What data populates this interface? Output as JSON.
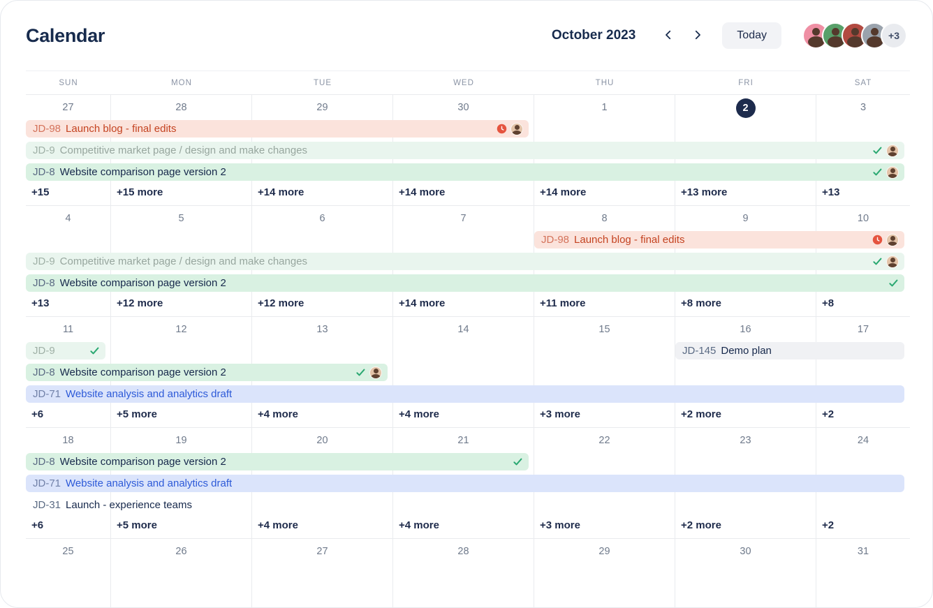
{
  "header": {
    "title": "Calendar",
    "month_label": "October 2023",
    "today_label": "Today",
    "overflow_badge": "+3",
    "avatars": [
      {
        "color": "#ef8fa4"
      },
      {
        "color": "#58a06a"
      },
      {
        "color": "#b24a41"
      },
      {
        "color": "#9aa3ad"
      }
    ]
  },
  "colors": {
    "accent_dark": "#172b4d",
    "today_bg": "#1d2b4c",
    "grid_line": "#e9ebee",
    "check": "#2aa871",
    "clock": "#e5543f",
    "event_types": {
      "red": {
        "bg": "#fbe3dc",
        "key": "#d4735b",
        "title": "#c44321"
      },
      "green_done": {
        "bg": "#e9f5ee",
        "key": "#9fb0a6",
        "title": "#97a69e"
      },
      "green": {
        "bg": "#d9f1e2",
        "key": "#5a6a83",
        "title": "#16284b"
      },
      "blue": {
        "bg": "#dbe4fb",
        "key": "#7181a8",
        "title": "#2d5ad8"
      },
      "gray": {
        "bg": "#f0f1f4",
        "key": "#5a6a83",
        "title": "#16284b"
      },
      "plain": {
        "bg": "transparent",
        "key": "#5a6a83",
        "title": "#16284b"
      }
    }
  },
  "calendar": {
    "day_headers": [
      "SUN",
      "MON",
      "TUE",
      "WED",
      "THU",
      "FRI",
      "SAT"
    ],
    "weeks": [
      {
        "dates": [
          "27",
          "28",
          "29",
          "30",
          "1",
          "2",
          "3"
        ],
        "today_index": 5,
        "events": [
          {
            "key": "JD-98",
            "title": "Launch blog - final edits",
            "type": "red",
            "col_start": 0,
            "col_span": 4,
            "row": 0,
            "icons": [
              "clock",
              "avatar"
            ]
          },
          {
            "key": "JD-9",
            "title": "Competitive market page / design and make changes",
            "type": "green_done",
            "col_start": 0,
            "col_span": 7,
            "row": 1,
            "icons": [
              "check",
              "avatar"
            ]
          },
          {
            "key": "JD-8",
            "title": "Website comparison page version 2",
            "type": "green",
            "col_start": 0,
            "col_span": 7,
            "row": 2,
            "icons": [
              "check",
              "avatar"
            ]
          }
        ],
        "more": [
          "+15",
          "+15 more",
          "+14 more",
          "+14 more",
          "+14 more",
          "+13 more",
          "+13"
        ]
      },
      {
        "dates": [
          "4",
          "5",
          "6",
          "7",
          "8",
          "9",
          "10"
        ],
        "today_index": -1,
        "events": [
          {
            "key": "JD-98",
            "title": "Launch blog - final edits",
            "type": "red",
            "col_start": 4,
            "col_span": 3,
            "row": 0,
            "icons": [
              "clock",
              "avatar"
            ]
          },
          {
            "key": "JD-9",
            "title": "Competitive market page / design and make changes",
            "type": "green_done",
            "col_start": 0,
            "col_span": 7,
            "row": 1,
            "icons": [
              "check",
              "avatar"
            ]
          },
          {
            "key": "JD-8",
            "title": "Website comparison page version 2",
            "type": "green",
            "col_start": 0,
            "col_span": 7,
            "row": 2,
            "icons": [
              "check"
            ]
          }
        ],
        "more": [
          "+13",
          "+12 more",
          "+12 more",
          "+14 more",
          "+11 more",
          "+8 more",
          "+8"
        ]
      },
      {
        "dates": [
          "11",
          "12",
          "13",
          "14",
          "15",
          "16",
          "17"
        ],
        "today_index": -1,
        "events": [
          {
            "key": "JD-9",
            "title": "",
            "type": "green_done",
            "col_start": 0,
            "col_span": 1,
            "row": 0,
            "icons": [
              "check"
            ]
          },
          {
            "key": "JD-145",
            "title": "Demo plan",
            "type": "gray",
            "col_start": 5,
            "col_span": 2,
            "row": 0,
            "icons": []
          },
          {
            "key": "JD-8",
            "title": "Website comparison page version 2",
            "type": "green",
            "col_start": 0,
            "col_span": 3,
            "row": 1,
            "icons": [
              "check",
              "avatar"
            ]
          },
          {
            "key": "JD-71",
            "title": "Website analysis and analytics draft",
            "type": "blue",
            "col_start": 0,
            "col_span": 7,
            "row": 2,
            "icons": []
          }
        ],
        "more": [
          "+6",
          "+5 more",
          "+4 more",
          "+4 more",
          "+3 more",
          "+2 more",
          "+2"
        ]
      },
      {
        "dates": [
          "18",
          "19",
          "20",
          "21",
          "22",
          "23",
          "24"
        ],
        "today_index": -1,
        "events": [
          {
            "key": "JD-8",
            "title": "Website comparison page version 2",
            "type": "green",
            "col_start": 0,
            "col_span": 4,
            "row": 0,
            "icons": [
              "check"
            ]
          },
          {
            "key": "JD-71",
            "title": "Website analysis and analytics draft",
            "type": "blue",
            "col_start": 0,
            "col_span": 7,
            "row": 1,
            "icons": []
          },
          {
            "key": "JD-31",
            "title": "Launch - experience teams",
            "type": "plain",
            "col_start": 0,
            "col_span": 7,
            "row": 2,
            "icons": []
          }
        ],
        "more": [
          "+6",
          "+5 more",
          "+4 more",
          "+4 more",
          "+3 more",
          "+2 more",
          "+2"
        ]
      },
      {
        "dates": [
          "25",
          "26",
          "27",
          "28",
          "29",
          "30",
          "31"
        ],
        "today_index": -1,
        "events": [],
        "more": []
      }
    ]
  }
}
